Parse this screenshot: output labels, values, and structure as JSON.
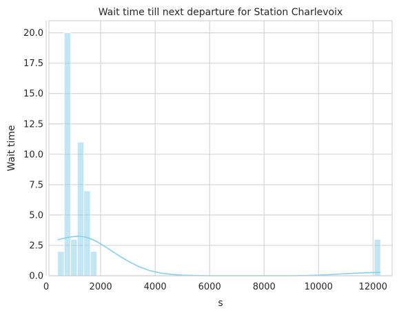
{
  "chart_data": {
    "type": "bar",
    "title": "Wait time till next departure for Station Charlevoix",
    "xlabel": "s",
    "ylabel": "Wait time",
    "x_range": [
      100,
      12700
    ],
    "y_range": [
      0,
      21
    ],
    "x_ticks": [
      0,
      2000,
      4000,
      6000,
      8000,
      10000,
      12000
    ],
    "y_ticks": [
      "0.0",
      "2.5",
      "5.0",
      "7.5",
      "10.0",
      "12.5",
      "15.0",
      "17.5",
      "20.0"
    ],
    "grid": true,
    "bar_color": "#87CEEB",
    "bar_opacity": 0.5,
    "line_color": "#87CEEB",
    "bins": [
      {
        "x0": 420,
        "x1": 660,
        "value": 2
      },
      {
        "x0": 660,
        "x1": 900,
        "value": 20
      },
      {
        "x0": 900,
        "x1": 1140,
        "value": 3
      },
      {
        "x0": 1140,
        "x1": 1380,
        "value": 11
      },
      {
        "x0": 1380,
        "x1": 1620,
        "value": 7
      },
      {
        "x0": 1620,
        "x1": 1860,
        "value": 2
      },
      {
        "x0": 12040,
        "x1": 12280,
        "value": 3
      }
    ],
    "kde": {
      "x": [
        420,
        600,
        800,
        1000,
        1200,
        1400,
        1600,
        1800,
        2000,
        2300,
        2600,
        3000,
        3400,
        3800,
        4200,
        4600,
        5000,
        5500,
        6000,
        6500,
        7000,
        8000,
        9000,
        9500,
        10000,
        10500,
        11000,
        11500,
        12000,
        12280
      ],
      "y": [
        2.95,
        3.05,
        3.15,
        3.22,
        3.25,
        3.2,
        3.07,
        2.88,
        2.62,
        2.2,
        1.75,
        1.2,
        0.75,
        0.42,
        0.22,
        0.11,
        0.05,
        0.02,
        0.0,
        0.0,
        0.0,
        0.0,
        0.0,
        0.02,
        0.05,
        0.1,
        0.17,
        0.22,
        0.26,
        0.27
      ]
    }
  }
}
